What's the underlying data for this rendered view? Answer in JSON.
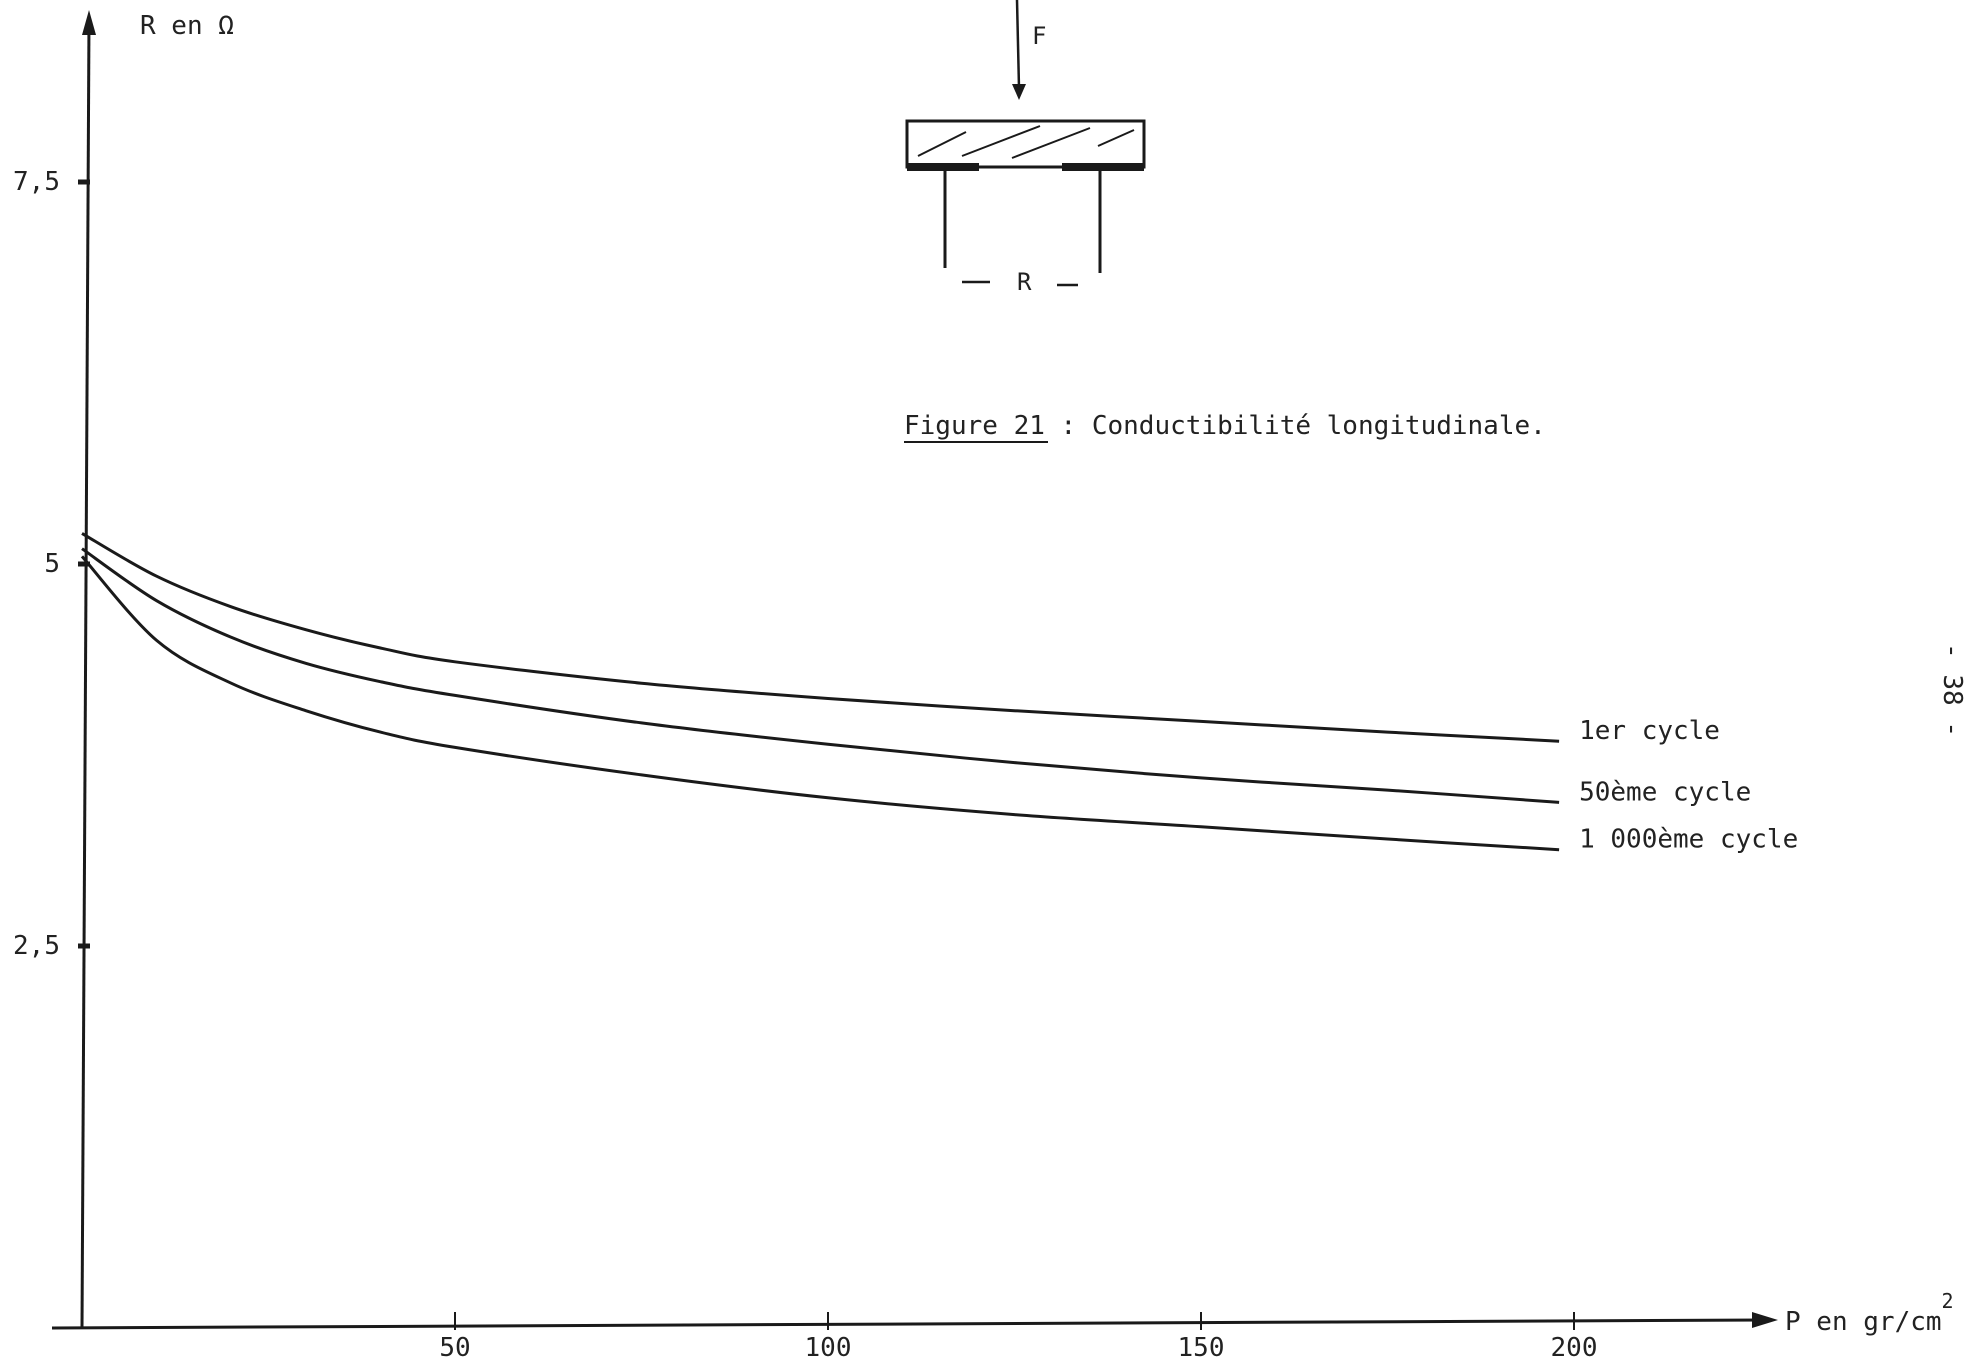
{
  "page_number": "- 38 -",
  "diagram": {
    "force_label": "F",
    "resistance_label": "R"
  },
  "caption": {
    "figure_ref": "Figure 21",
    "text": " : Conductibilité longitudinale."
  },
  "chart_data": {
    "type": "line",
    "ylabel": "R en Ω",
    "xlabel": "P en gr/cm",
    "xlabel_superscript": "2",
    "xlim": [
      0,
      225
    ],
    "ylim": [
      0,
      8.5
    ],
    "x_ticks": [
      {
        "value": 50,
        "label": "50"
      },
      {
        "value": 100,
        "label": "100"
      },
      {
        "value": 150,
        "label": "150"
      },
      {
        "value": 200,
        "label": "200"
      }
    ],
    "y_ticks": [
      {
        "value": 2.5,
        "label": "2,5"
      },
      {
        "value": 5,
        "label": "5"
      },
      {
        "value": 7.5,
        "label": "7,5"
      }
    ],
    "x": [
      0,
      10,
      20,
      30,
      40,
      50,
      75,
      100,
      125,
      150,
      175,
      198
    ],
    "series": [
      {
        "name": "1er cycle",
        "values": [
          5.2,
          4.92,
          4.72,
          4.57,
          4.45,
          4.36,
          4.22,
          4.12,
          4.04,
          3.97,
          3.9,
          3.84
        ]
      },
      {
        "name": "50ème cycle",
        "values": [
          5.1,
          4.76,
          4.52,
          4.35,
          4.23,
          4.14,
          3.96,
          3.82,
          3.7,
          3.6,
          3.52,
          3.44
        ]
      },
      {
        "name": "1 000ème cycle",
        "values": [
          5.05,
          4.5,
          4.22,
          4.04,
          3.9,
          3.8,
          3.62,
          3.47,
          3.36,
          3.28,
          3.2,
          3.13
        ]
      }
    ]
  }
}
